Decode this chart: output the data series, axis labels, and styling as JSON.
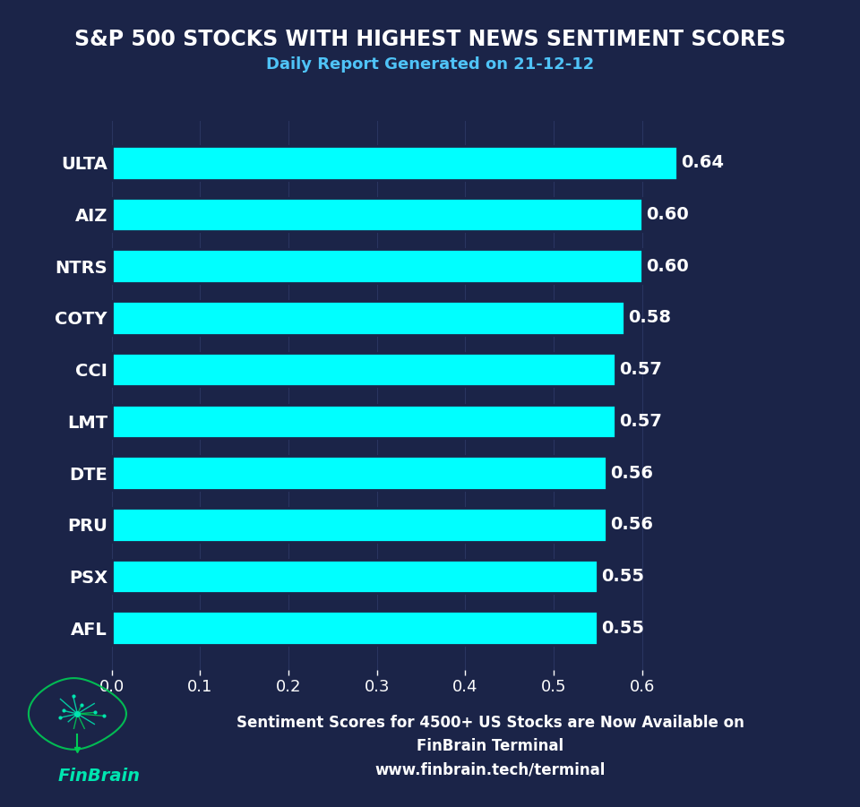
{
  "title_line1": "S&P 500 STOCKS WITH HIGHEST NEWS SENTIMENT SCORES",
  "title_line2": "Daily Report Generated on 21-12-12",
  "categories": [
    "ULTA",
    "AIZ",
    "NTRS",
    "COTY",
    "CCI",
    "LMT",
    "DTE",
    "PRU",
    "PSX",
    "AFL"
  ],
  "values": [
    0.64,
    0.6,
    0.6,
    0.58,
    0.57,
    0.57,
    0.56,
    0.56,
    0.55,
    0.55
  ],
  "bar_color": "#00FFFF",
  "background_color": "#1b2448",
  "text_color": "#ffffff",
  "xlim": [
    0,
    0.72
  ],
  "xticks": [
    0.0,
    0.1,
    0.2,
    0.3,
    0.4,
    0.5,
    0.6
  ],
  "footer_text": "Sentiment Scores for 4500+ US Stocks are Now Available on\nFinBrain Terminal\nwww.finbrain.tech/terminal",
  "footer_logo_text": "FinBrain",
  "title_fontsize": 17,
  "subtitle_fontsize": 13,
  "bar_label_fontsize": 14,
  "tick_fontsize": 13,
  "footer_fontsize": 12,
  "ytick_fontsize": 14,
  "subtitle_color": "#4fc3f7",
  "finbrain_color": "#00e5b0",
  "grid_color": "#2a3560"
}
